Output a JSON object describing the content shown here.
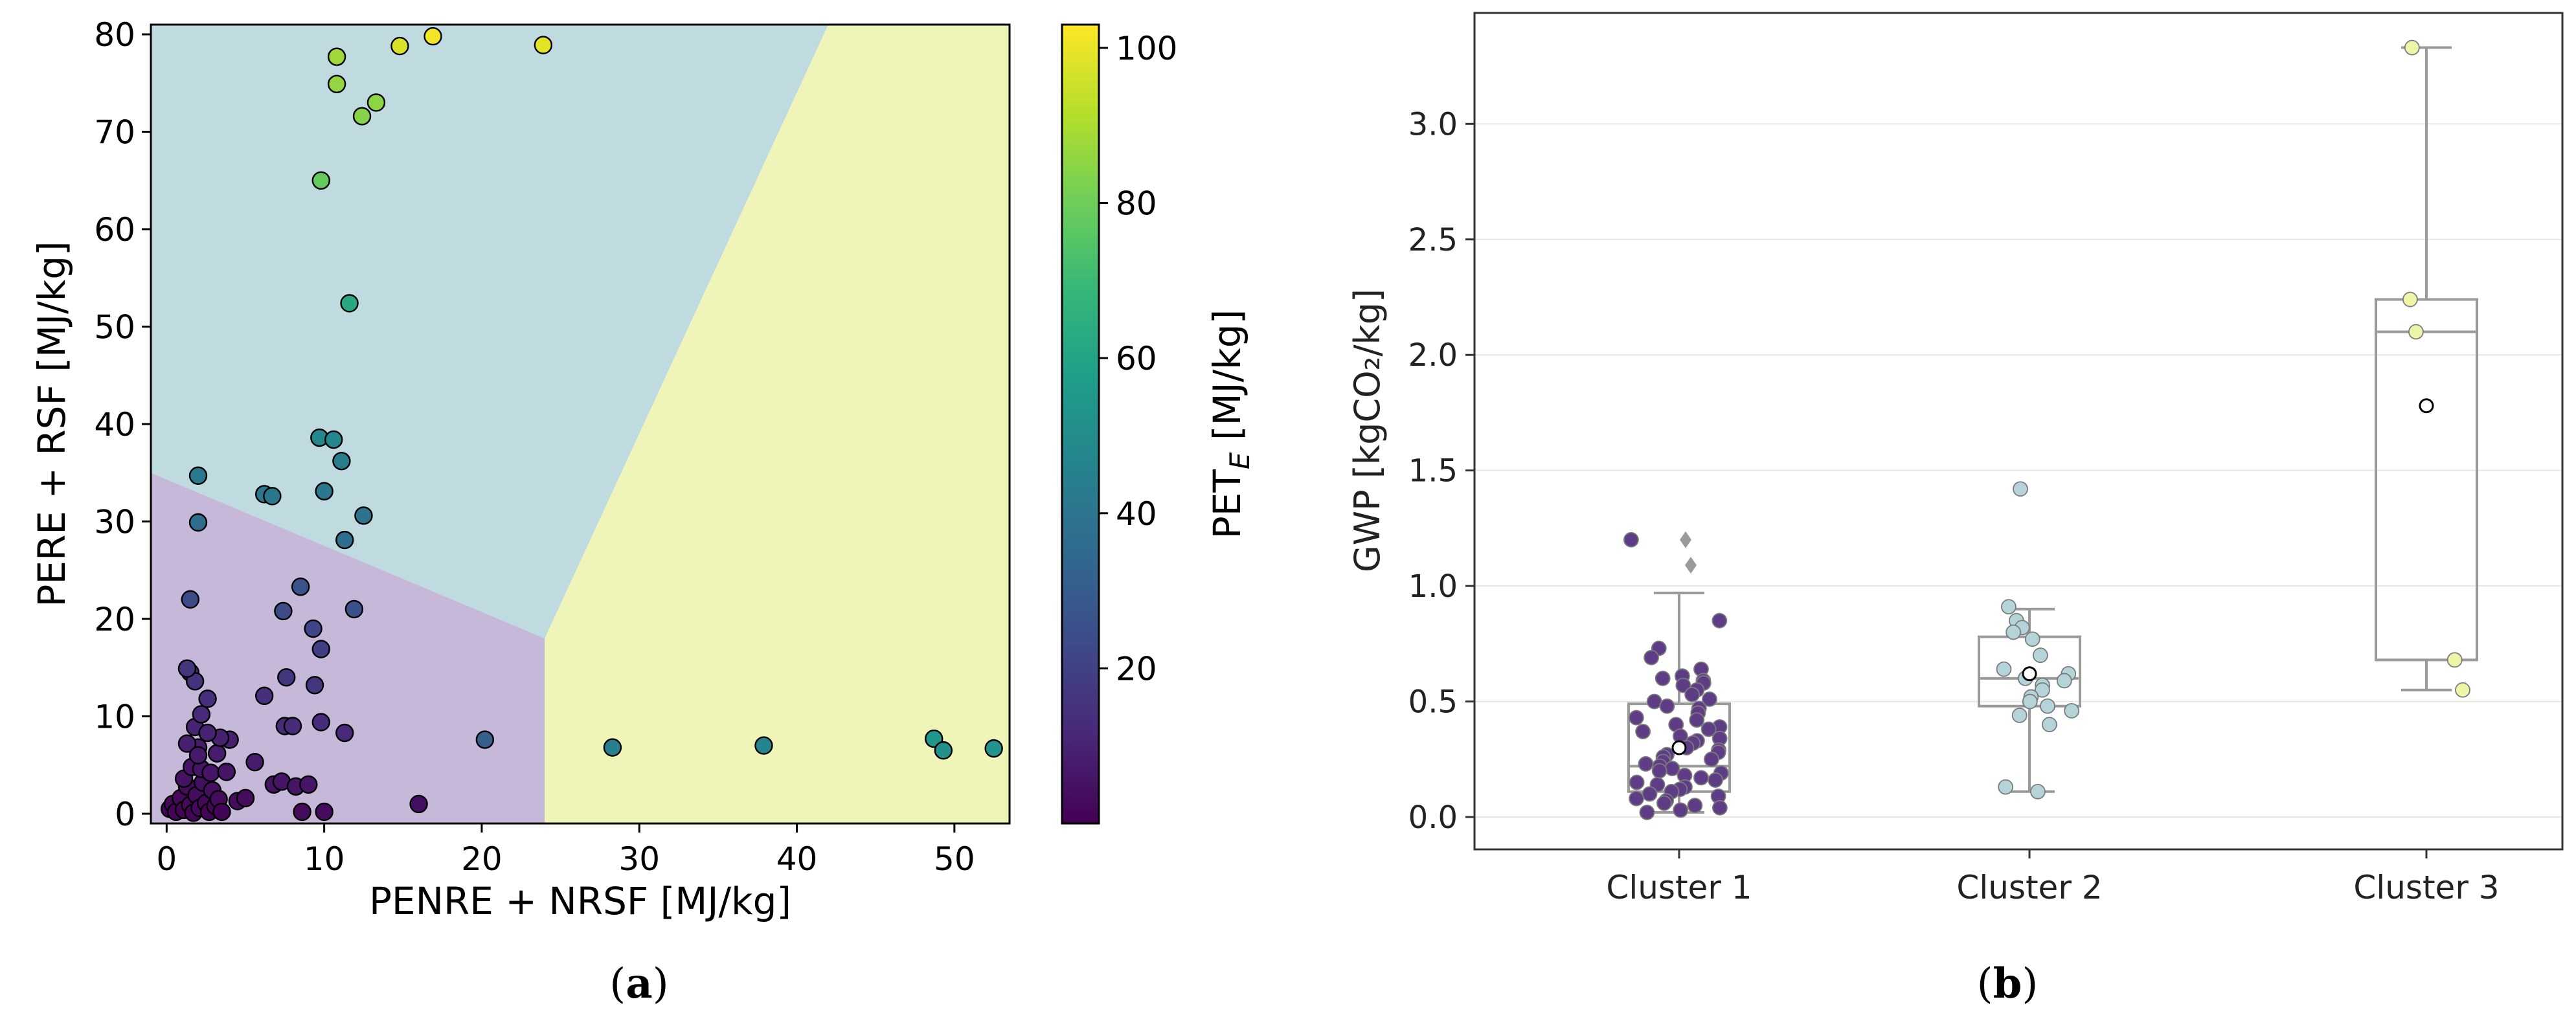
{
  "panel_labels": {
    "a": "a",
    "b": "b"
  },
  "chart_data": [
    {
      "panel": "a",
      "type": "scatter",
      "title": "",
      "xlabel": "PENRE + NRSF [MJ/kg]",
      "ylabel": "PERE + RSF [MJ/kg]",
      "xlim": [
        -1,
        53.5
      ],
      "ylim": [
        -1,
        81
      ],
      "xticks": [
        0,
        10,
        20,
        30,
        40,
        50
      ],
      "yticks": [
        0,
        10,
        20,
        30,
        40,
        50,
        60,
        70,
        80
      ],
      "grid": false,
      "colorbar": {
        "label_main": "PET",
        "label_sub": "E",
        "label_unit": " [MJ/kg]",
        "ticks": [
          20,
          40,
          60,
          80,
          100
        ],
        "range": [
          0,
          103
        ],
        "colormap": [
          "#440154",
          "#482878",
          "#3e4989",
          "#31688e",
          "#26828e",
          "#1f9e89",
          "#35b779",
          "#6ece58",
          "#b5de2b",
          "#fde725"
        ]
      },
      "regions": [
        {
          "cluster": "Cluster 1",
          "color": "#c5b8d8",
          "polygon": [
            [
              -1,
              -1
            ],
            [
              24,
              -1
            ],
            [
              24,
              18
            ],
            [
              -1,
              35
            ]
          ]
        },
        {
          "cluster": "Cluster 2",
          "color": "#bfdbe0",
          "polygon": [
            [
              -1,
              35
            ],
            [
              24,
              18
            ],
            [
              42,
              81
            ],
            [
              -1,
              81
            ]
          ]
        },
        {
          "cluster": "Cluster 3",
          "color": "#eff5b9",
          "polygon": [
            [
              24,
              -1
            ],
            [
              53.5,
              -1
            ],
            [
              53.5,
              81
            ],
            [
              42,
              81
            ],
            [
              24,
              18
            ]
          ]
        }
      ],
      "points": [
        [
          0.2,
          0.5,
          1
        ],
        [
          0.4,
          1.0,
          2
        ],
        [
          0.6,
          0.2,
          1
        ],
        [
          0.9,
          1.6,
          2
        ],
        [
          1.1,
          0.4,
          1
        ],
        [
          1.3,
          2.8,
          3
        ],
        [
          1.5,
          0.9,
          2
        ],
        [
          1.7,
          0.1,
          1
        ],
        [
          1.9,
          1.9,
          3
        ],
        [
          2.1,
          0.6,
          2
        ],
        [
          2.3,
          3.2,
          4
        ],
        [
          2.5,
          1.1,
          2
        ],
        [
          2.7,
          0.2,
          1
        ],
        [
          2.9,
          2.4,
          4
        ],
        [
          3.1,
          0.8,
          2
        ],
        [
          3.3,
          1.5,
          3
        ],
        [
          3.5,
          0.2,
          1
        ],
        [
          1.1,
          3.6,
          5
        ],
        [
          1.6,
          4.8,
          6
        ],
        [
          2.2,
          4.6,
          6
        ],
        [
          2.8,
          4.2,
          6
        ],
        [
          3.2,
          6.2,
          8
        ],
        [
          2.0,
          6.8,
          8
        ],
        [
          1.3,
          7.2,
          9
        ],
        [
          1.8,
          8.9,
          10
        ],
        [
          2.2,
          10.2,
          12
        ],
        [
          2.6,
          11.8,
          14
        ],
        [
          1.5,
          14.5,
          16
        ],
        [
          1.8,
          13.6,
          15
        ],
        [
          1.3,
          14.9,
          16
        ],
        [
          1.5,
          22.0,
          24
        ],
        [
          3.8,
          4.3,
          6
        ],
        [
          4.0,
          7.6,
          9
        ],
        [
          3.4,
          7.8,
          9
        ],
        [
          2.6,
          8.3,
          10
        ],
        [
          2.0,
          6.0,
          7
        ],
        [
          4.5,
          1.3,
          3
        ],
        [
          5.0,
          1.6,
          3
        ],
        [
          5.6,
          5.3,
          8
        ],
        [
          6.8,
          3.0,
          5
        ],
        [
          7.3,
          3.3,
          6
        ],
        [
          6.2,
          12.1,
          14
        ],
        [
          7.4,
          20.8,
          24
        ],
        [
          7.6,
          14.0,
          16
        ],
        [
          7.5,
          9.0,
          12
        ],
        [
          8.0,
          9.0,
          13
        ],
        [
          8.2,
          2.8,
          6
        ],
        [
          8.5,
          23.3,
          27
        ],
        [
          8.6,
          0.2,
          3
        ],
        [
          9.0,
          3.0,
          6
        ],
        [
          9.3,
          19.0,
          22
        ],
        [
          9.4,
          13.2,
          16
        ],
        [
          9.8,
          16.9,
          19
        ],
        [
          9.8,
          9.4,
          13
        ],
        [
          10.0,
          0.2,
          3
        ],
        [
          11.3,
          8.3,
          12
        ],
        [
          11.9,
          21.0,
          26
        ],
        [
          16.0,
          1.0,
          4
        ],
        [
          20.2,
          7.6,
          31
        ],
        [
          2.0,
          34.7,
          42
        ],
        [
          2.0,
          29.9,
          36
        ],
        [
          6.2,
          32.8,
          41
        ],
        [
          6.7,
          32.6,
          41
        ],
        [
          9.7,
          38.6,
          48
        ],
        [
          10.6,
          38.4,
          48
        ],
        [
          11.1,
          36.2,
          44
        ],
        [
          10.0,
          33.1,
          41
        ],
        [
          11.3,
          28.1,
          36
        ],
        [
          12.5,
          30.6,
          39
        ],
        [
          11.6,
          52.4,
          62
        ],
        [
          9.8,
          65.0,
          78
        ],
        [
          10.8,
          77.7,
          88
        ],
        [
          10.8,
          74.9,
          86
        ],
        [
          12.4,
          71.6,
          84
        ],
        [
          13.3,
          73.0,
          85
        ],
        [
          14.8,
          78.8,
          97
        ],
        [
          16.9,
          79.8,
          101
        ],
        [
          23.9,
          78.9,
          99
        ],
        [
          28.3,
          6.8,
          45
        ],
        [
          37.9,
          7.0,
          47
        ],
        [
          48.7,
          7.7,
          54
        ],
        [
          49.3,
          6.5,
          52
        ],
        [
          52.5,
          6.7,
          53
        ]
      ]
    },
    {
      "panel": "b",
      "type": "box",
      "title": "",
      "xlabel": "",
      "ylabel": "GWP [kgCO₂/kg]",
      "categories": [
        "Cluster 1",
        "Cluster 2",
        "Cluster 3"
      ],
      "ylim": [
        -0.14,
        3.48
      ],
      "yticks": [
        "0.0",
        "0.5",
        "1.0",
        "1.5",
        "2.0",
        "2.5",
        "3.0"
      ],
      "grid": "horizontal",
      "series": [
        {
          "name": "Cluster 1",
          "color": "#5e3d86",
          "whisker_low": 0.02,
          "q1": 0.11,
          "median": 0.22,
          "q3": 0.49,
          "whisker_high": 0.97,
          "mean": 0.3,
          "outliers": [
            1.2,
            1.09
          ],
          "points": [
            1.2,
            0.85,
            0.73,
            0.69,
            0.64,
            0.61,
            0.6,
            0.59,
            0.58,
            0.57,
            0.55,
            0.53,
            0.51,
            0.5,
            0.48,
            0.47,
            0.45,
            0.43,
            0.42,
            0.4,
            0.39,
            0.38,
            0.37,
            0.35,
            0.34,
            0.33,
            0.32,
            0.3,
            0.29,
            0.28,
            0.27,
            0.26,
            0.25,
            0.24,
            0.23,
            0.22,
            0.21,
            0.2,
            0.19,
            0.18,
            0.17,
            0.16,
            0.15,
            0.14,
            0.13,
            0.12,
            0.11,
            0.1,
            0.09,
            0.08,
            0.07,
            0.06,
            0.05,
            0.04,
            0.03,
            0.02
          ]
        },
        {
          "name": "Cluster 2",
          "color": "#b4d4d9",
          "whisker_low": 0.11,
          "q1": 0.48,
          "median": 0.6,
          "q3": 0.78,
          "whisker_high": 0.9,
          "mean": 0.62,
          "outliers": [],
          "points": [
            1.42,
            0.91,
            0.85,
            0.82,
            0.8,
            0.77,
            0.7,
            0.64,
            0.62,
            0.6,
            0.59,
            0.57,
            0.55,
            0.52,
            0.5,
            0.48,
            0.46,
            0.44,
            0.4,
            0.13,
            0.11
          ]
        },
        {
          "name": "Cluster 3",
          "color": "#eef5a6",
          "whisker_low": 0.55,
          "q1": 0.68,
          "median": 2.1,
          "q3": 2.24,
          "whisker_high": 3.33,
          "mean": 1.78,
          "outliers": [],
          "points": [
            3.33,
            2.24,
            2.1,
            0.68,
            0.55
          ]
        }
      ]
    }
  ]
}
